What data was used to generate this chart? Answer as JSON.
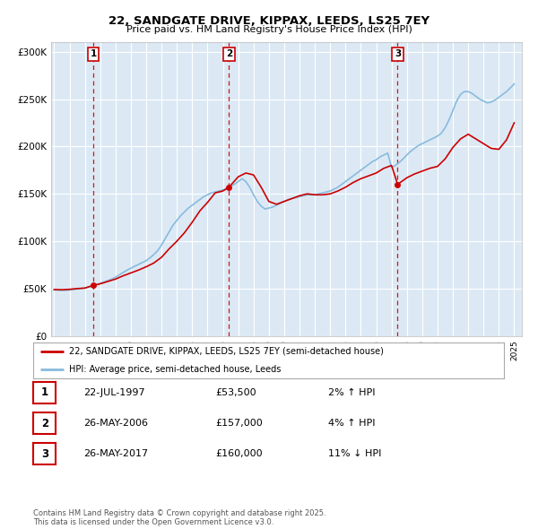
{
  "title": "22, SANDGATE DRIVE, KIPPAX, LEEDS, LS25 7EY",
  "subtitle": "Price paid vs. HM Land Registry's House Price Index (HPI)",
  "ylim": [
    0,
    310000
  ],
  "xlim_start": 1994.8,
  "xlim_end": 2025.5,
  "yticks": [
    0,
    50000,
    100000,
    150000,
    200000,
    250000,
    300000
  ],
  "ytick_labels": [
    "£0",
    "£50K",
    "£100K",
    "£150K",
    "£200K",
    "£250K",
    "£300K"
  ],
  "xtick_years": [
    1995,
    1996,
    1997,
    1998,
    1999,
    2000,
    2001,
    2002,
    2003,
    2004,
    2005,
    2006,
    2007,
    2008,
    2009,
    2010,
    2011,
    2012,
    2013,
    2014,
    2015,
    2016,
    2017,
    2018,
    2019,
    2020,
    2021,
    2022,
    2023,
    2024,
    2025
  ],
  "bg_color": "#dce9f5",
  "grid_color": "#ffffff",
  "line1_color": "#cc0000",
  "line2_color": "#88bbdd",
  "vline_color": "#cc0000",
  "marker_color": "#cc0000",
  "sale_points": [
    {
      "year": 1997.55,
      "price": 53500,
      "label": "1"
    },
    {
      "year": 2006.4,
      "price": 157000,
      "label": "2"
    },
    {
      "year": 2017.4,
      "price": 160000,
      "label": "3"
    }
  ],
  "legend_line1": "22, SANDGATE DRIVE, KIPPAX, LEEDS, LS25 7EY (semi-detached house)",
  "legend_line2": "HPI: Average price, semi-detached house, Leeds",
  "table_rows": [
    {
      "num": "1",
      "date": "22-JUL-1997",
      "price": "£53,500",
      "hpi": "2% ↑ HPI"
    },
    {
      "num": "2",
      "date": "26-MAY-2006",
      "price": "£157,000",
      "hpi": "4% ↑ HPI"
    },
    {
      "num": "3",
      "date": "26-MAY-2017",
      "price": "£160,000",
      "hpi": "11% ↓ HPI"
    }
  ],
  "footnote": "Contains HM Land Registry data © Crown copyright and database right 2025.\nThis data is licensed under the Open Government Licence v3.0.",
  "hpi_data": {
    "years": [
      1995.0,
      1995.25,
      1995.5,
      1995.75,
      1996.0,
      1996.25,
      1996.5,
      1996.75,
      1997.0,
      1997.25,
      1997.5,
      1997.75,
      1998.0,
      1998.25,
      1998.5,
      1998.75,
      1999.0,
      1999.25,
      1999.5,
      1999.75,
      2000.0,
      2000.25,
      2000.5,
      2000.75,
      2001.0,
      2001.25,
      2001.5,
      2001.75,
      2002.0,
      2002.25,
      2002.5,
      2002.75,
      2003.0,
      2003.25,
      2003.5,
      2003.75,
      2004.0,
      2004.25,
      2004.5,
      2004.75,
      2005.0,
      2005.25,
      2005.5,
      2005.75,
      2006.0,
      2006.25,
      2006.5,
      2006.75,
      2007.0,
      2007.25,
      2007.5,
      2007.75,
      2008.0,
      2008.25,
      2008.5,
      2008.75,
      2009.0,
      2009.25,
      2009.5,
      2009.75,
      2010.0,
      2010.25,
      2010.5,
      2010.75,
      2011.0,
      2011.25,
      2011.5,
      2011.75,
      2012.0,
      2012.25,
      2012.5,
      2012.75,
      2013.0,
      2013.25,
      2013.5,
      2013.75,
      2014.0,
      2014.25,
      2014.5,
      2014.75,
      2015.0,
      2015.25,
      2015.5,
      2015.75,
      2016.0,
      2016.25,
      2016.5,
      2016.75,
      2017.0,
      2017.25,
      2017.5,
      2017.75,
      2018.0,
      2018.25,
      2018.5,
      2018.75,
      2019.0,
      2019.25,
      2019.5,
      2019.75,
      2020.0,
      2020.25,
      2020.5,
      2020.75,
      2021.0,
      2021.25,
      2021.5,
      2021.75,
      2022.0,
      2022.25,
      2022.5,
      2022.75,
      2023.0,
      2023.25,
      2023.5,
      2023.75,
      2024.0,
      2024.25,
      2024.5,
      2024.75,
      2025.0
    ],
    "values": [
      48500,
      48200,
      48000,
      48100,
      48500,
      49000,
      49500,
      50000,
      50500,
      51500,
      52500,
      54000,
      55500,
      57000,
      58500,
      60000,
      62000,
      64500,
      67000,
      69500,
      71500,
      73500,
      75500,
      77500,
      79500,
      82500,
      86000,
      90000,
      96000,
      103000,
      110000,
      117000,
      122000,
      127000,
      131000,
      135000,
      138000,
      141000,
      144000,
      147000,
      149000,
      151000,
      152000,
      153000,
      154000,
      156000,
      158000,
      160000,
      163000,
      166000,
      163000,
      157000,
      149000,
      142000,
      137000,
      134000,
      135000,
      136000,
      138000,
      140000,
      142000,
      144000,
      145000,
      146000,
      147000,
      148000,
      149000,
      149000,
      149000,
      150000,
      151000,
      152000,
      153000,
      155000,
      157000,
      160000,
      163000,
      166000,
      169000,
      172000,
      175000,
      178000,
      181000,
      184000,
      186000,
      189000,
      191000,
      193000,
      178000,
      180000,
      183000,
      187000,
      191000,
      195000,
      198000,
      201000,
      203000,
      205000,
      207000,
      209000,
      211000,
      214000,
      220000,
      228000,
      238000,
      248000,
      255000,
      258000,
      258000,
      256000,
      253000,
      250000,
      248000,
      246000,
      247000,
      249000,
      252000,
      255000,
      258000,
      262000,
      266000
    ]
  },
  "price_line_data": {
    "years": [
      1995.0,
      1995.5,
      1996.0,
      1996.5,
      1997.0,
      1997.55,
      1998.0,
      1998.5,
      1999.0,
      1999.5,
      2000.0,
      2000.5,
      2001.0,
      2001.5,
      2002.0,
      2002.5,
      2003.0,
      2003.5,
      2004.0,
      2004.5,
      2005.0,
      2005.5,
      2006.0,
      2006.4,
      2007.0,
      2007.5,
      2008.0,
      2008.5,
      2009.0,
      2009.5,
      2010.0,
      2010.5,
      2011.0,
      2011.5,
      2012.0,
      2012.5,
      2013.0,
      2013.5,
      2014.0,
      2014.5,
      2015.0,
      2015.5,
      2016.0,
      2016.5,
      2017.0,
      2017.4,
      2018.0,
      2018.5,
      2019.0,
      2019.5,
      2020.0,
      2020.5,
      2021.0,
      2021.5,
      2022.0,
      2022.5,
      2023.0,
      2023.5,
      2024.0,
      2024.5,
      2025.0
    ],
    "values": [
      49000,
      48800,
      49200,
      50000,
      50500,
      53500,
      55000,
      57500,
      60000,
      63500,
      66500,
      69500,
      73000,
      77000,
      83000,
      92000,
      100000,
      109000,
      120000,
      132000,
      141000,
      151000,
      153000,
      157000,
      168000,
      172000,
      170000,
      157000,
      142000,
      139000,
      142000,
      145000,
      148000,
      150000,
      149000,
      149000,
      150000,
      153000,
      157000,
      162000,
      166000,
      169000,
      172000,
      177000,
      180000,
      160000,
      167000,
      171000,
      174000,
      177000,
      179000,
      187000,
      199000,
      208000,
      213000,
      208000,
      203000,
      198000,
      197000,
      207000,
      225000
    ]
  }
}
